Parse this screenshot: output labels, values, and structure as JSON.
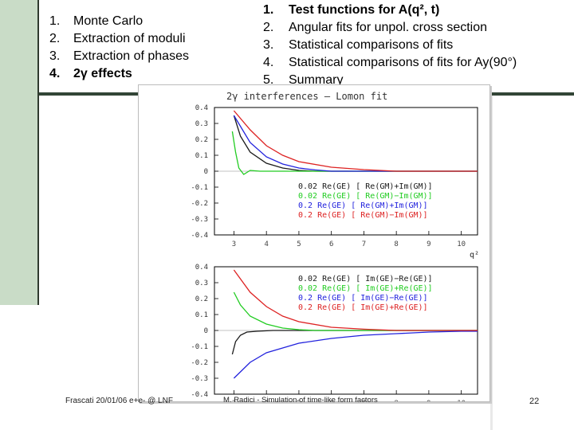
{
  "left_list": [
    {
      "num": "1.",
      "text": "Monte Carlo"
    },
    {
      "num": "2.",
      "text": "Extraction of moduli"
    },
    {
      "num": "3.",
      "text": "Extraction of phases"
    },
    {
      "num": "4.",
      "text": "2γ effects"
    }
  ],
  "right_list": [
    {
      "num": "1.",
      "text": "Test functions for A(q², t)"
    },
    {
      "num": "2.",
      "text": "Angular fits for unpol. cross section"
    },
    {
      "num": "3.",
      "text": "Statistical comparisons of fits"
    },
    {
      "num": "4.",
      "text": "Statistical comparisons of fits for Ay(90°)"
    },
    {
      "num": "5.",
      "text": "Summary"
    }
  ],
  "footer": {
    "left": "Frascati 20/01/06 e+e- @ LNF",
    "center": "M. Radici - Simulation of time-like form factors",
    "page": "22"
  },
  "chart_data": [
    {
      "type": "line",
      "title": "2γ interferences — Lomon fit",
      "xlabel": "q²",
      "x_ticks": [
        "3",
        "4",
        "5",
        "6",
        "7",
        "8",
        "9",
        "10"
      ],
      "y_ticks": [
        "0.4",
        "0.3",
        "0.2",
        "0.1",
        "0",
        "-0.1",
        "-0.2",
        "-0.3",
        "-0.4"
      ],
      "ylim": [
        -0.4,
        0.4
      ],
      "xlim": [
        2.4,
        10.5
      ],
      "legend": [
        {
          "label": "0.02 Re(GE) [ Re(GM)+Im(GM)]",
          "color": "#1a1a1a"
        },
        {
          "label": "0.02 Re(GE) [ Re(GM)−Im(GM)]",
          "color": "#22cc22"
        },
        {
          "label": "0.2 Re(GE) [ Re(GM)+Im(GM)]",
          "color": "#2222dd"
        },
        {
          "label": "0.2 Re(GE) [ Re(GM)−Im(GM)]",
          "color": "#dd2222"
        }
      ],
      "series": [
        {
          "color": "#1a1a1a",
          "x": [
            3.0,
            3.2,
            3.5,
            4.0,
            4.5,
            5.0,
            5.5
          ],
          "values": [
            0.35,
            0.22,
            0.12,
            0.05,
            0.02,
            0.005,
            0.0
          ]
        },
        {
          "color": "#22cc22",
          "x": [
            2.95,
            3.05,
            3.15,
            3.3,
            3.5,
            3.8,
            4.2
          ],
          "values": [
            0.25,
            0.12,
            0.02,
            -0.02,
            0.005,
            0.0,
            0.0
          ]
        },
        {
          "color": "#2222dd",
          "x": [
            3.0,
            3.5,
            4.0,
            4.5,
            5.0,
            5.5,
            6.0
          ],
          "values": [
            0.35,
            0.18,
            0.09,
            0.045,
            0.02,
            0.008,
            0.0
          ]
        },
        {
          "color": "#dd2222",
          "x": [
            3.0,
            3.5,
            4.0,
            4.5,
            5.0,
            6.0,
            7.0,
            8.0
          ],
          "values": [
            0.38,
            0.26,
            0.16,
            0.1,
            0.06,
            0.025,
            0.01,
            0.0
          ]
        }
      ]
    },
    {
      "type": "line",
      "title": "",
      "xlabel": "q²",
      "x_ticks": [
        "3",
        "4",
        "5",
        "6",
        "7",
        "8",
        "9",
        "10"
      ],
      "y_ticks": [
        "0.4",
        "0.3",
        "0.2",
        "0.1",
        "0",
        "-0.1",
        "-0.2",
        "-0.3",
        "-0.4"
      ],
      "ylim": [
        -0.4,
        0.4
      ],
      "xlim": [
        2.4,
        10.5
      ],
      "legend": [
        {
          "label": "0.02 Re(GE) [ Im(GE)−Re(GE)]",
          "color": "#1a1a1a"
        },
        {
          "label": "0.02 Re(GE) [ Im(GE)+Re(GE)]",
          "color": "#22cc22"
        },
        {
          "label": "0.2 Re(GE) [ Im(GE)−Re(GE)]",
          "color": "#2222dd"
        },
        {
          "label": "0.2 Re(GE) [ Im(GE)+Re(GE)]",
          "color": "#dd2222"
        }
      ],
      "series": [
        {
          "color": "#1a1a1a",
          "x": [
            2.95,
            3.05,
            3.2,
            3.4,
            3.7,
            4.2,
            5.0
          ],
          "values": [
            -0.15,
            -0.07,
            -0.03,
            -0.01,
            -0.005,
            0.0,
            0.0
          ]
        },
        {
          "color": "#22cc22",
          "x": [
            3.0,
            3.2,
            3.5,
            4.0,
            4.5,
            5.0,
            5.5
          ],
          "values": [
            0.24,
            0.16,
            0.09,
            0.04,
            0.015,
            0.005,
            0.0
          ]
        },
        {
          "color": "#2222dd",
          "x": [
            3.0,
            3.5,
            4.0,
            5.0,
            6.0,
            7.0,
            8.0,
            9.0,
            10.0
          ],
          "values": [
            -0.3,
            -0.2,
            -0.14,
            -0.08,
            -0.05,
            -0.03,
            -0.02,
            -0.01,
            -0.005
          ]
        },
        {
          "color": "#dd2222",
          "x": [
            3.0,
            3.5,
            4.0,
            4.5,
            5.0,
            6.0,
            7.0,
            8.0
          ],
          "values": [
            0.38,
            0.24,
            0.15,
            0.09,
            0.055,
            0.02,
            0.008,
            0.0
          ]
        }
      ]
    }
  ]
}
